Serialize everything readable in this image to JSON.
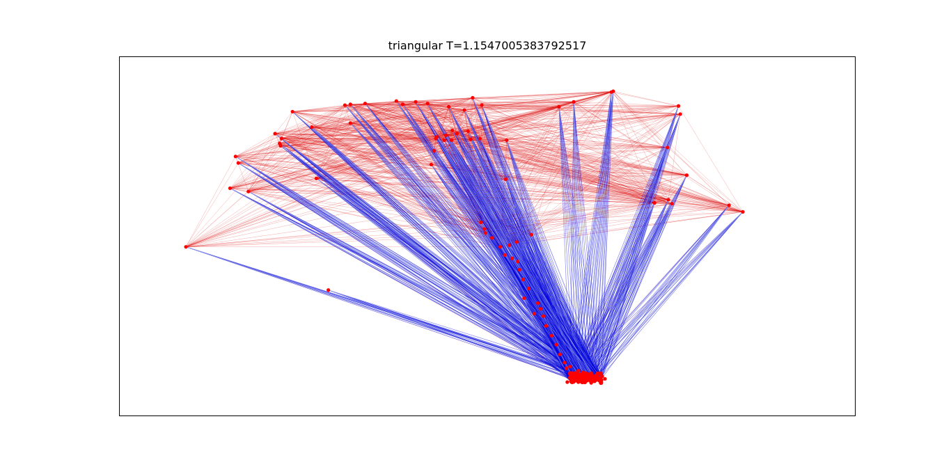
{
  "chart_data": {
    "type": "scatter",
    "title": "triangular T=1.1547005383792517",
    "xlabel": "",
    "ylabel": "",
    "axes_ticks": false,
    "grid": false,
    "colors": {
      "node": "#ff0000",
      "edge_red": "#dd1111",
      "edge_blue": "#0000dd",
      "edge_blue_light": "#aab4ee",
      "edge_red_light": "#ff7777",
      "axes": "#000000"
    },
    "nodes": [
      [
        -2.12,
        2.03
      ],
      [
        -1.55,
        2.11
      ],
      [
        -1.49,
        2.12
      ],
      [
        -1.33,
        2.13
      ],
      [
        -0.16,
        2.2
      ],
      [
        -0.06,
        2.11
      ],
      [
        0.78,
        2.09
      ],
      [
        0.94,
        2.15
      ],
      [
        1.35,
        2.27
      ],
      [
        1.37,
        2.28
      ],
      [
        2.08,
        2.1
      ],
      [
        2.1,
        2.0
      ],
      [
        1.96,
        1.59
      ],
      [
        2.17,
        1.25
      ],
      [
        2.63,
        0.88
      ],
      [
        2.78,
        0.8
      ],
      [
        2.01,
        0.9
      ],
      [
        1.82,
        0.91
      ],
      [
        1.97,
        0.95
      ],
      [
        0.21,
        1.68
      ],
      [
        -0.61,
        1.38
      ],
      [
        -1.91,
        1.84
      ],
      [
        -1.49,
        1.89
      ],
      [
        -2.31,
        1.76
      ],
      [
        -2.24,
        1.7
      ],
      [
        -2.25,
        1.61
      ],
      [
        -2.74,
        1.48
      ],
      [
        -2.8,
        1.09
      ],
      [
        -2.71,
        1.4
      ],
      [
        -3.28,
        0.37
      ],
      [
        -1.73,
        -0.16
      ],
      [
        -2.6,
        1.05
      ],
      [
        -1.86,
        1.21
      ],
      [
        -2.26,
        1.64
      ],
      [
        -0.92,
        2.12
      ],
      [
        -0.65,
        2.13
      ],
      [
        -0.99,
        2.16
      ],
      [
        -0.78,
        2.15
      ],
      [
        -0.42,
        2.09
      ],
      [
        -0.25,
        2.05
      ],
      [
        -0.39,
        1.68
      ],
      [
        -0.47,
        1.68
      ],
      [
        -0.55,
        1.72
      ],
      [
        -0.38,
        1.8
      ],
      [
        -0.33,
        1.76
      ],
      [
        -0.18,
        1.69
      ],
      [
        -0.21,
        1.79
      ],
      [
        -0.08,
        1.7
      ],
      [
        -0.58,
        1.55
      ],
      [
        0.2,
        1.2
      ],
      [
        -0.07,
        0.67
      ],
      [
        -0.03,
        0.59
      ],
      [
        -0.02,
        0.54
      ],
      [
        0.05,
        0.48
      ],
      [
        0.14,
        0.37
      ],
      [
        0.19,
        0.27
      ],
      [
        0.27,
        0.23
      ],
      [
        0.33,
        0.19
      ],
      [
        0.35,
        0.09
      ],
      [
        0.39,
        -0.03
      ],
      [
        0.45,
        -0.14
      ],
      [
        0.55,
        -0.32
      ],
      [
        0.58,
        -0.39
      ],
      [
        0.61,
        -0.48
      ],
      [
        0.64,
        -0.6
      ],
      [
        0.7,
        -0.72
      ],
      [
        0.75,
        -0.83
      ],
      [
        0.79,
        -0.95
      ],
      [
        0.84,
        -1.05
      ],
      [
        0.86,
        -1.12
      ],
      [
        0.92,
        -1.18
      ],
      [
        0.97,
        -1.21
      ],
      [
        1.02,
        -1.22
      ],
      [
        0.96,
        -1.27
      ],
      [
        0.99,
        -1.29
      ],
      [
        1.04,
        -1.28
      ],
      [
        1.08,
        -1.25
      ],
      [
        1.12,
        -1.27
      ],
      [
        1.17,
        -1.26
      ],
      [
        1.22,
        -1.27
      ],
      [
        1.25,
        -1.22
      ],
      [
        1.2,
        -1.19
      ],
      [
        1.14,
        -1.21
      ],
      [
        1.09,
        -1.19
      ],
      [
        1.04,
        -1.17
      ],
      [
        0.99,
        -1.15
      ],
      [
        0.9,
        -1.1
      ],
      [
        0.87,
        -1.29
      ],
      [
        1.28,
        -1.25
      ],
      [
        1.13,
        -1.3
      ],
      [
        0.51,
        -0.45
      ],
      [
        0.4,
        -0.26
      ],
      [
        0.48,
        0.52
      ],
      [
        0.24,
        0.39
      ],
      [
        0.32,
        0.43
      ],
      [
        -0.56,
        1.7
      ],
      [
        -0.45,
        1.74
      ]
    ],
    "hubs": [
      [
        0.9,
        -1.24
      ],
      [
        1.24,
        -1.24
      ]
    ],
    "xlim": [
      -4.0,
      4.0
    ],
    "ylim": [
      -1.7,
      2.7
    ]
  }
}
